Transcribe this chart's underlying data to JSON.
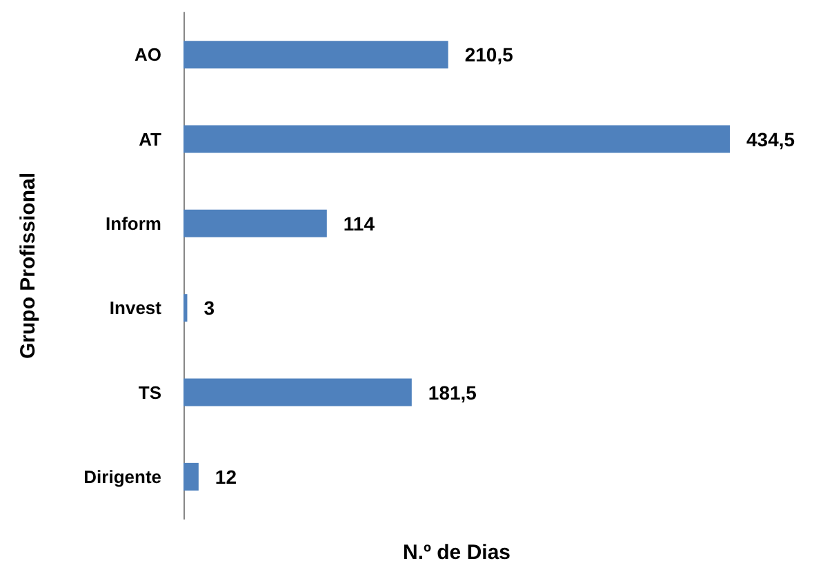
{
  "chart_data": {
    "type": "bar",
    "orientation": "horizontal",
    "xlabel": "N.º de Dias",
    "ylabel": "Grupo Profissional",
    "categories": [
      "AO",
      "AT",
      "Inform",
      "Invest",
      "TS",
      "Dirigente"
    ],
    "values": [
      210.5,
      434.5,
      114,
      3,
      181.5,
      12
    ],
    "value_labels": [
      "210,5",
      "434,5",
      "114",
      "3",
      "181,5",
      "12"
    ],
    "color": "#4f81bd"
  }
}
